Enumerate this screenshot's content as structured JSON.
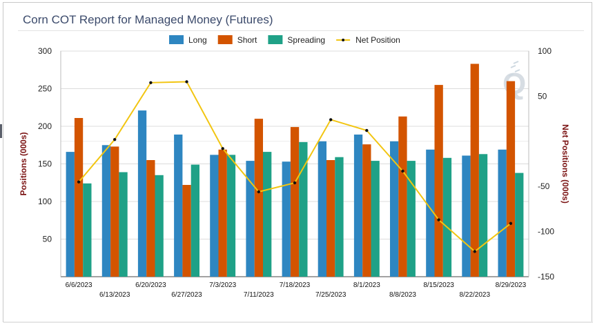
{
  "chart_data": {
    "type": "bar",
    "title": "Corn COT Report for Managed Money (Futures)",
    "ylabel": "Positions (000s)",
    "y2label": "Net Positions (000s)",
    "ylim": [
      0,
      300
    ],
    "y2lim": [
      -150,
      100
    ],
    "yticks": [
      50,
      100,
      150,
      200,
      250,
      300
    ],
    "y2ticks": [
      -150,
      -100,
      -50,
      50,
      100
    ],
    "legend_position": "top",
    "grid": true,
    "categories": [
      "6/6/2023",
      "6/13/2023",
      "6/20/2023",
      "6/27/2023",
      "7/3/2023",
      "7/11/2023",
      "7/18/2023",
      "7/25/2023",
      "8/1/2023",
      "8/8/2023",
      "8/15/2023",
      "8/22/2023",
      "8/29/2023"
    ],
    "series": [
      {
        "name": "Long",
        "type": "bar",
        "axis": "left",
        "color": "#2e86c1",
        "values": [
          166,
          175,
          221,
          189,
          162,
          154,
          153,
          180,
          189,
          180,
          169,
          161,
          169
        ]
      },
      {
        "name": "Short",
        "type": "bar",
        "axis": "left",
        "color": "#d35400",
        "values": [
          211,
          173,
          155,
          122,
          169,
          210,
          199,
          155,
          176,
          213,
          255,
          283,
          260
        ]
      },
      {
        "name": "Spreading",
        "type": "bar",
        "axis": "left",
        "color": "#1fa187",
        "values": [
          124,
          139,
          135,
          149,
          162,
          166,
          179,
          159,
          154,
          154,
          158,
          163,
          138
        ]
      },
      {
        "name": "Net Position",
        "type": "line",
        "axis": "right",
        "color": "#f2c511",
        "values": [
          -45,
          2,
          65,
          66,
          -8,
          -56,
          -46,
          24,
          12,
          -33,
          -87,
          -122,
          -91
        ]
      }
    ]
  }
}
